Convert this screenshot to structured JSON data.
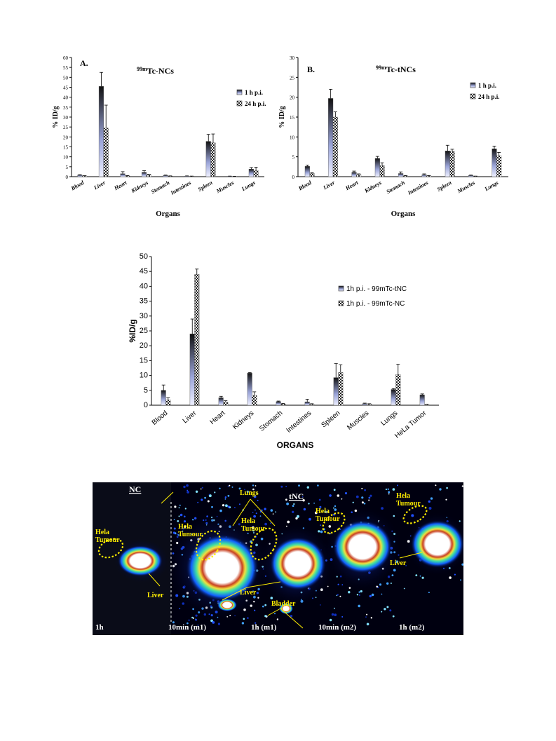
{
  "charts": [
    {
      "type": "bar",
      "panel_label": "A.",
      "title_sup": "99m",
      "title_main": "Tc-NCs",
      "xlabel": "Organs",
      "ylabel": "% ID/g",
      "ylim": [
        0,
        60
      ],
      "yticks": [
        0,
        5,
        10,
        15,
        20,
        25,
        30,
        35,
        40,
        45,
        50,
        55,
        60
      ],
      "categories": [
        "Blood",
        "Liver",
        "Heart",
        "Kidneys",
        "Stomach",
        "Intestines",
        "Spleen",
        "Muscles",
        "Lungs"
      ],
      "series": [
        {
          "name": "1 h p.i.",
          "values": [
            0.8,
            45.5,
            1.5,
            2.2,
            0.6,
            0.3,
            17.8,
            0.2,
            3.8
          ],
          "errors": [
            0.2,
            7.0,
            1.0,
            0.8,
            0.2,
            0.1,
            3.5,
            0.1,
            0.8
          ]
        },
        {
          "name": "24 h p.i.",
          "values": [
            0.4,
            24.5,
            0.4,
            0.9,
            0.3,
            0.2,
            17.0,
            0.1,
            3.0
          ],
          "errors": [
            0.1,
            11.5,
            0.2,
            0.3,
            0.1,
            0.1,
            4.5,
            0.1,
            1.8
          ]
        }
      ]
    },
    {
      "type": "bar",
      "panel_label": "B.",
      "title_sup": "99m",
      "title_main": "Tc-tNCs",
      "xlabel": "Organs",
      "ylabel": "% ID/g",
      "ylim": [
        0,
        30
      ],
      "yticks": [
        0,
        5,
        10,
        15,
        20,
        25,
        30
      ],
      "categories": [
        "Blood",
        "Liver",
        "Heart",
        "Kidneys",
        "Stomach",
        "Intestines",
        "Spleen",
        "Muscles",
        "Lungs"
      ],
      "series": [
        {
          "name": "1 h p.i.",
          "values": [
            2.6,
            19.7,
            1.1,
            4.6,
            0.8,
            0.5,
            6.5,
            0.3,
            7.0
          ],
          "errors": [
            0.3,
            2.3,
            0.3,
            0.5,
            0.4,
            0.2,
            1.4,
            0.1,
            0.7
          ]
        },
        {
          "name": "24 h p.i.",
          "values": [
            0.8,
            15.0,
            0.5,
            2.8,
            0.2,
            0.2,
            6.4,
            0.1,
            5.3
          ],
          "errors": [
            0.2,
            1.3,
            0.2,
            0.7,
            0.1,
            0.1,
            0.5,
            0.05,
            0.8
          ]
        }
      ]
    },
    {
      "type": "bar",
      "panel_label": "",
      "xlabel": "ORGANS",
      "ylabel": "%ID/g",
      "ylim": [
        0,
        50
      ],
      "yticks": [
        0,
        5,
        10,
        15,
        20,
        25,
        30,
        35,
        40,
        45,
        50
      ],
      "categories": [
        "Blood",
        "Liver",
        "Heart",
        "Kidneys",
        "Stomach",
        "Intestines",
        "Spleen",
        "Muscles",
        "Lungs",
        "HeLa Tumor"
      ],
      "series": [
        {
          "name": "1h p.i. - 99mTc-tNC",
          "values": [
            5.0,
            24.0,
            2.5,
            10.8,
            1.2,
            1.1,
            9.3,
            0.5,
            5.3,
            3.5
          ],
          "errors": [
            1.8,
            5.0,
            0.5,
            0.2,
            0.2,
            0.9,
            4.7,
            0.2,
            0.3,
            0.3
          ]
        },
        {
          "name": "1h p.i. - 99mTc-NC",
          "values": [
            1.8,
            44.0,
            1.0,
            3.3,
            0.4,
            0.3,
            11.0,
            0.3,
            10.3,
            0.2
          ],
          "errors": [
            0.7,
            1.8,
            0.5,
            1.2,
            0.2,
            0.2,
            2.6,
            0.2,
            3.5,
            0.1
          ]
        }
      ]
    }
  ],
  "imaging": {
    "nc_label": "NC",
    "tnc_label": "tNC",
    "labels": {
      "tumour1": "Hela\nTumour",
      "tumour2": "Hela\nTumour",
      "tumour3": "Hela\nTumour",
      "tumour4": "Hela\nTumour",
      "lungs": "Lungs",
      "liver1": "Liver",
      "liver2": "Liver",
      "liver3": "Liver",
      "bladder": "Bladder"
    },
    "time_labels": [
      "1h",
      "10min (m1)",
      "1h (m1)",
      "10min (m2)",
      "1h (m2)"
    ]
  }
}
